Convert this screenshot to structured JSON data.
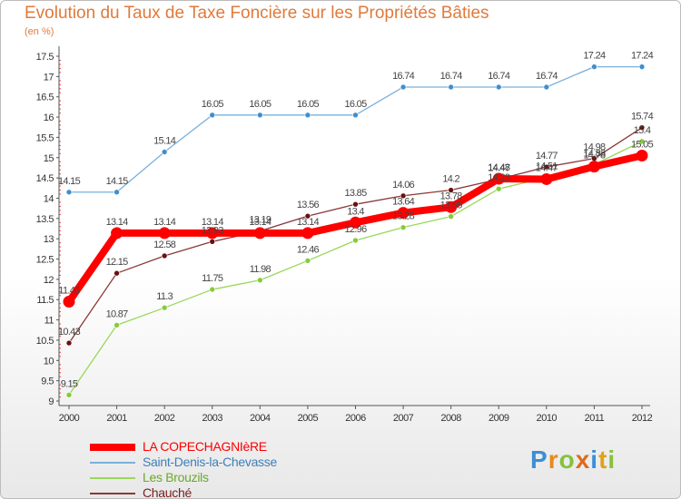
{
  "header": {
    "title": "Evolution du Taux de Taxe Foncière sur les Propriétés Bâties",
    "subtitle": "(en %)"
  },
  "logo": {
    "letters": [
      "P",
      "r",
      "o",
      "x",
      "i",
      "t",
      "i"
    ],
    "colors": [
      "#3c8fd6",
      "#e88a1a",
      "#86c23b",
      "#e06a1a",
      "#3c8fd6",
      "#e0a21a",
      "#86c23b"
    ]
  },
  "chart_data": {
    "type": "line",
    "title": "Evolution du Taux de Taxe Foncière sur les Propriétés Bâties",
    "ylabel": "(en %)",
    "xlabel": "",
    "x": [
      "2000",
      "2001",
      "2002",
      "2003",
      "2004",
      "2005",
      "2006",
      "2007",
      "2008",
      "2009",
      "2010",
      "2011",
      "2012"
    ],
    "ylim": [
      9,
      17.5
    ],
    "yticks": [
      "9",
      "9.5",
      "10",
      "10.5",
      "11",
      "11.5",
      "12",
      "12.5",
      "13",
      "13.5",
      "14",
      "14.5",
      "15",
      "15.5",
      "16",
      "16.5",
      "17",
      "17.5"
    ],
    "grid": false,
    "legend_position": "bottom-left",
    "series": [
      {
        "name": "LA COPECHAGNIèRE",
        "color": "#ff0000",
        "dot": "#ff0000",
        "values": [
          11.45,
          13.14,
          13.14,
          13.14,
          13.14,
          13.14,
          13.4,
          13.64,
          13.78,
          14.48,
          14.47,
          14.78,
          15.05
        ],
        "labels": [
          "11.45",
          "13.14",
          "13.14",
          "13.14",
          "13.14",
          "13.14",
          "13.4",
          "13.64",
          "13.78",
          "14.48",
          "14.47",
          "14.78",
          "15.05"
        ]
      },
      {
        "name": "Saint-Denis-la-Chevasse",
        "color": "#7ab0dd",
        "dot": "#3f8fd0",
        "values": [
          14.15,
          14.15,
          15.14,
          16.05,
          16.05,
          16.05,
          16.05,
          16.74,
          16.74,
          16.74,
          16.74,
          17.24,
          17.24
        ],
        "labels": [
          "14.15",
          "14.15",
          "15.14",
          "16.05",
          "16.05",
          "16.05",
          "16.05",
          "16.74",
          "16.74",
          "16.74",
          "16.74",
          "17.24",
          "17.24"
        ]
      },
      {
        "name": "Les Brouzils",
        "color": "#9ad75a",
        "dot": "#86cc3a",
        "values": [
          9.15,
          10.87,
          11.3,
          11.75,
          11.98,
          12.46,
          12.96,
          13.28,
          13.55,
          14.23,
          14.51,
          14.83,
          15.4
        ],
        "labels": [
          "9.15",
          "10.87",
          "11.3",
          "11.75",
          "11.98",
          "12.46",
          "12.96",
          "13.28",
          "13.55",
          "14.23",
          "14.51",
          "14.83",
          "15.4"
        ]
      },
      {
        "name": "Chauché",
        "color": "#8a3838",
        "dot": "#6a1010",
        "values": [
          10.43,
          12.15,
          12.58,
          12.93,
          13.19,
          13.56,
          13.85,
          14.06,
          14.2,
          14.47,
          14.77,
          14.98,
          15.74
        ],
        "labels": [
          "10.43",
          "12.15",
          "12.58",
          "12.93",
          "13.19",
          "13.56",
          "13.85",
          "14.06",
          "14.2",
          "14.47",
          "14.77",
          "14.98",
          "15.74"
        ]
      }
    ]
  }
}
